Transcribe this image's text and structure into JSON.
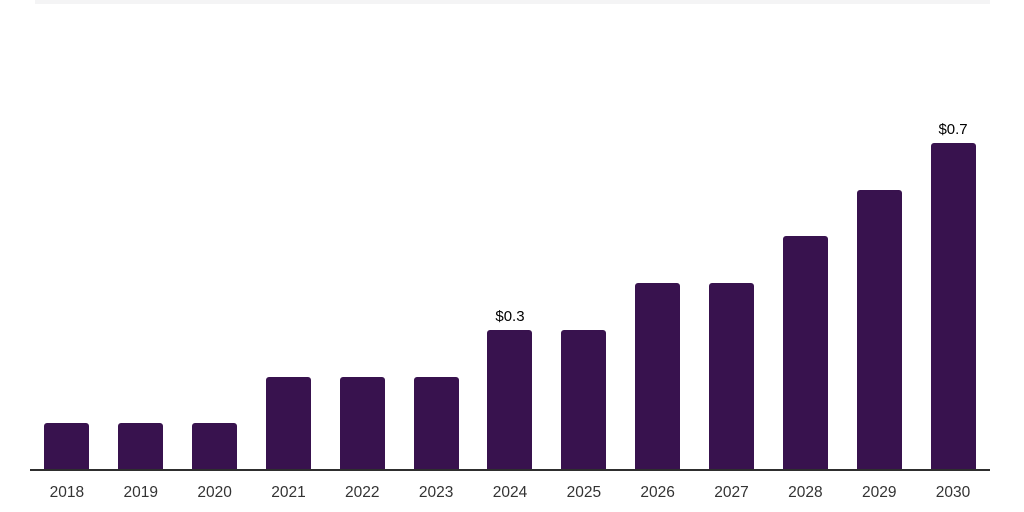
{
  "page": {
    "background_color": "#ffffff"
  },
  "top_divider": {
    "color": "#f4f4f5"
  },
  "chart_data": {
    "type": "bar",
    "title": "",
    "xlabel": "",
    "ylabel": "",
    "categories": [
      "2018",
      "2019",
      "2020",
      "2021",
      "2022",
      "2023",
      "2024",
      "2025",
      "2026",
      "2027",
      "2028",
      "2029",
      "2030"
    ],
    "values": [
      0.1,
      0.1,
      0.1,
      0.2,
      0.2,
      0.2,
      0.3,
      0.3,
      0.4,
      0.4,
      0.5,
      0.6,
      0.7
    ],
    "data_labels": [
      "",
      "",
      "",
      "",
      "",
      "",
      "$0.3",
      "",
      "",
      "",
      "",
      "",
      "$0.7"
    ],
    "ylim": [
      0,
      0.75
    ],
    "grid": false,
    "legend": false,
    "y_axis_visible": false,
    "bar_color": "#38124e",
    "axis_line_color": "#2e2e2e",
    "data_label_color": "#000000",
    "tick_label_color": "#333333"
  }
}
